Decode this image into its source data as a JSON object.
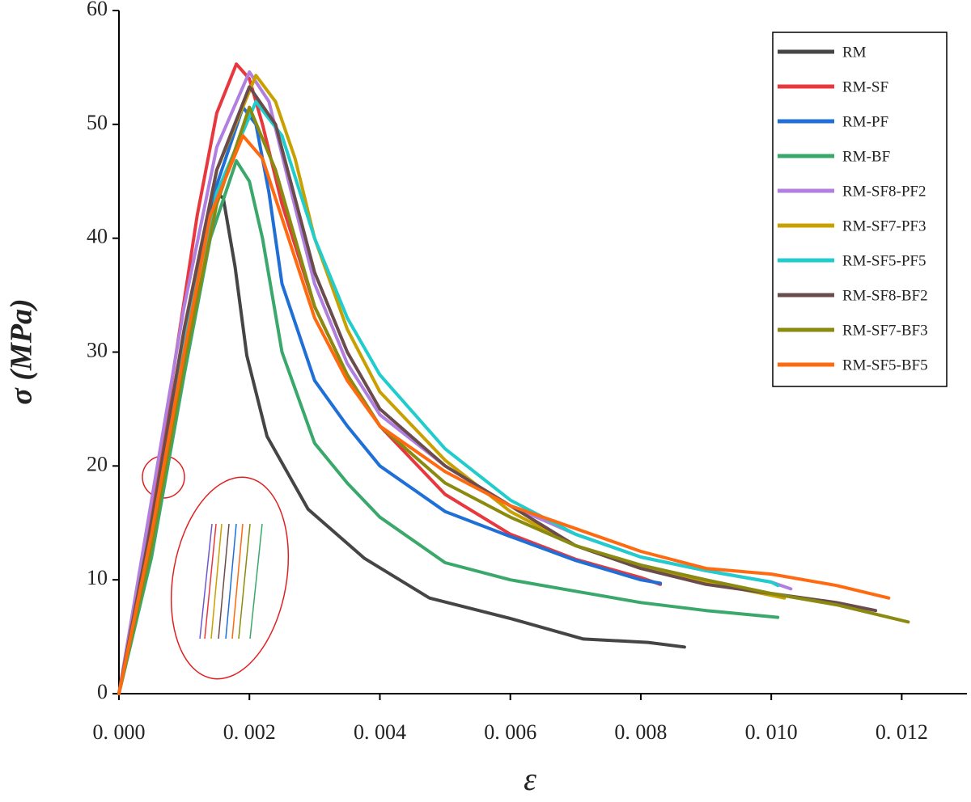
{
  "chart_data": {
    "type": "line",
    "x_label": "ε",
    "y_label": "σ (MPa)",
    "xlim": [
      0,
      0.013
    ],
    "ylim": [
      0,
      60
    ],
    "xticks": [
      {
        "value": 0,
        "label": "0. 000"
      },
      {
        "value": 0.002,
        "label": "0. 002"
      },
      {
        "value": 0.004,
        "label": "0. 004"
      },
      {
        "value": 0.006,
        "label": "0. 006"
      },
      {
        "value": 0.008,
        "label": "0. 008"
      },
      {
        "value": 0.01,
        "label": "0. 010"
      },
      {
        "value": 0.012,
        "label": "0. 012"
      }
    ],
    "yticks": [
      0,
      10,
      20,
      30,
      40,
      50,
      60
    ],
    "legend": "upper right",
    "series": [
      {
        "name": "RM",
        "color": "#454545",
        "x": [
          0,
          0.0005,
          0.001,
          0.0013,
          0.0015,
          0.0016,
          0.00178,
          0.00196,
          0.00227,
          0.0029,
          0.00376,
          0.00476,
          0.006,
          0.00712,
          0.00811,
          0.00867
        ],
        "values": [
          0,
          14,
          30,
          40,
          44,
          43.5,
          37.5,
          29.7,
          22.6,
          16.2,
          11.9,
          8.4,
          6.6,
          4.8,
          4.5,
          4.1
        ]
      },
      {
        "name": "RM-SF",
        "color": "#e8383d",
        "x": [
          0,
          0.0004,
          0.0008,
          0.0012,
          0.0015,
          0.0018,
          0.002,
          0.0022,
          0.0025,
          0.003,
          0.0035,
          0.004,
          0.005,
          0.006,
          0.007,
          0.008,
          0.0083
        ],
        "values": [
          0,
          12,
          27,
          42,
          51,
          55.3,
          54,
          50,
          43,
          34,
          28,
          23.5,
          17.5,
          14,
          11.8,
          10.2,
          9.6
        ]
      },
      {
        "name": "RM-PF",
        "color": "#1f6fd6",
        "x": [
          0,
          0.0005,
          0.001,
          0.0014,
          0.0019,
          0.0021,
          0.0023,
          0.0025,
          0.003,
          0.0035,
          0.004,
          0.005,
          0.006,
          0.007,
          0.008,
          0.0083
        ],
        "values": [
          0,
          14,
          31,
          43,
          51.5,
          50,
          44,
          36,
          27.5,
          23.5,
          20,
          16,
          13.8,
          11.7,
          10,
          9.7
        ]
      },
      {
        "name": "RM-BF",
        "color": "#3aa86b",
        "x": [
          0,
          0.0005,
          0.001,
          0.0014,
          0.0018,
          0.002,
          0.0022,
          0.0025,
          0.003,
          0.0035,
          0.004,
          0.005,
          0.006,
          0.007,
          0.008,
          0.009,
          0.0101
        ],
        "values": [
          0,
          12,
          28,
          40,
          46.8,
          45,
          40,
          30,
          22,
          18.5,
          15.5,
          11.5,
          10,
          9,
          8,
          7.3,
          6.7
        ]
      },
      {
        "name": "RM-SF8-PF2",
        "color": "#b07fe0",
        "x": [
          0,
          0.0005,
          0.001,
          0.0015,
          0.002,
          0.0023,
          0.0026,
          0.003,
          0.0035,
          0.004,
          0.005,
          0.006,
          0.007,
          0.008,
          0.009,
          0.01,
          0.0103
        ],
        "values": [
          0,
          17,
          34,
          48,
          54.6,
          52,
          45,
          36,
          29,
          24.5,
          20,
          16.5,
          14,
          12,
          10.8,
          9.8,
          9.2
        ]
      },
      {
        "name": "RM-SF7-PF3",
        "color": "#c8a000",
        "x": [
          0,
          0.0005,
          0.001,
          0.0015,
          0.0021,
          0.0024,
          0.0027,
          0.003,
          0.0035,
          0.004,
          0.005,
          0.006,
          0.007,
          0.008,
          0.009,
          0.0102
        ],
        "values": [
          0,
          15,
          32,
          46,
          54.3,
          52,
          47,
          40,
          32,
          26.5,
          20.5,
          16,
          13,
          11,
          9.8,
          8.4
        ]
      },
      {
        "name": "RM-SF5-PF5",
        "color": "#20cccc",
        "x": [
          0,
          0.0005,
          0.001,
          0.0015,
          0.0021,
          0.0025,
          0.003,
          0.0035,
          0.004,
          0.005,
          0.006,
          0.007,
          0.008,
          0.009,
          0.01,
          0.0101
        ],
        "values": [
          0,
          14,
          31,
          44,
          52,
          49,
          40,
          33,
          28,
          21.5,
          17,
          14,
          12,
          10.8,
          9.8,
          9.5
        ]
      },
      {
        "name": "RM-SF8-BF2",
        "color": "#6b4c4c",
        "x": [
          0,
          0.0005,
          0.001,
          0.0015,
          0.002,
          0.0024,
          0.003,
          0.0035,
          0.004,
          0.005,
          0.006,
          0.007,
          0.008,
          0.009,
          0.01,
          0.011,
          0.0116
        ],
        "values": [
          0,
          15,
          32,
          46,
          53.3,
          50,
          37,
          30,
          25,
          20,
          16.5,
          13,
          11,
          9.6,
          8.8,
          8,
          7.3
        ]
      },
      {
        "name": "RM-SF7-BF3",
        "color": "#8a8a10",
        "x": [
          0,
          0.0005,
          0.001,
          0.0015,
          0.002,
          0.0024,
          0.003,
          0.0035,
          0.004,
          0.005,
          0.006,
          0.007,
          0.008,
          0.009,
          0.01,
          0.011,
          0.0121
        ],
        "values": [
          0,
          13,
          29,
          43,
          51.5,
          46,
          34,
          28,
          23.5,
          18.5,
          15.5,
          13,
          11.3,
          10,
          8.8,
          7.8,
          6.3
        ]
      },
      {
        "name": "RM-SF5-BF5",
        "color": "#ff6a10",
        "x": [
          0,
          0.0005,
          0.001,
          0.0014,
          0.0019,
          0.0022,
          0.0026,
          0.003,
          0.0035,
          0.004,
          0.005,
          0.006,
          0.007,
          0.008,
          0.009,
          0.01,
          0.011,
          0.0118
        ],
        "values": [
          0,
          14,
          30,
          42,
          49,
          47,
          40,
          33,
          27.5,
          23.5,
          19.5,
          16.5,
          14.5,
          12.5,
          11,
          10.5,
          9.5,
          8.4
        ]
      }
    ]
  }
}
